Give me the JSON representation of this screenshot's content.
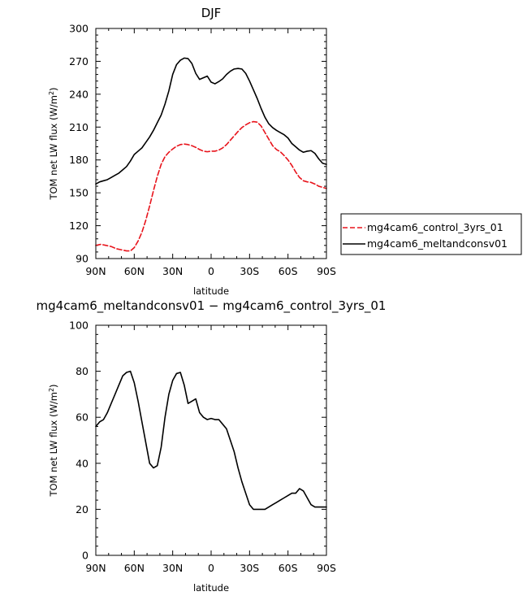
{
  "chart_data": [
    {
      "type": "line",
      "title": "DJF",
      "xlabel": "latitude",
      "ylabel": "TOM net LW flux (W/m²)",
      "ylabel_main": "TOM net LW flux (W/m",
      "ylabel_sup": "2",
      "ylabel_tail": ")",
      "xlim": [
        90,
        -90
      ],
      "ylim": [
        90,
        300
      ],
      "xticks": [
        90,
        60,
        30,
        0,
        -30,
        -60,
        -90
      ],
      "xtick_labels": [
        "90N",
        "60N",
        "30N",
        "0",
        "30S",
        "60S",
        "90S"
      ],
      "yticks": [
        90,
        120,
        150,
        180,
        210,
        240,
        270,
        300
      ],
      "ytick_labels": [
        "90",
        "120",
        "150",
        "180",
        "210",
        "240",
        "270",
        "300"
      ],
      "legend": {
        "placement": "right",
        "entries": [
          "mg4cam6_control_3yrs_01",
          "mg4cam6_meltandconsv01"
        ]
      },
      "series": [
        {
          "name": "mg4cam6_control_3yrs_01",
          "color": "#e8141c",
          "dash": "dashed",
          "x": [
            90,
            86,
            82,
            78,
            74,
            70,
            66,
            63,
            60,
            57,
            54,
            51,
            48,
            45,
            42,
            39,
            36,
            33,
            30,
            27,
            24,
            21,
            18,
            15,
            12,
            9,
            6,
            3,
            0,
            -3,
            -6,
            -9,
            -12,
            -15,
            -18,
            -21,
            -24,
            -27,
            -30,
            -33,
            -36,
            -39,
            -42,
            -45,
            -48,
            -51,
            -54,
            -57,
            -60,
            -63,
            -66,
            -69,
            -72,
            -75,
            -78,
            -81,
            -84,
            -87,
            -90
          ],
          "y": [
            102,
            103,
            102,
            101,
            99,
            98,
            97,
            97,
            100,
            106,
            114,
            125,
            138,
            152,
            165,
            176,
            183,
            187,
            190,
            192.5,
            194,
            194.5,
            194,
            193,
            191.5,
            189.5,
            188,
            187.5,
            188,
            188,
            189,
            191,
            194,
            198,
            202,
            206,
            209.5,
            212,
            214,
            215,
            214.5,
            211,
            205,
            199,
            193,
            189.5,
            187.5,
            184,
            180,
            175,
            169,
            164,
            161,
            160,
            159.5,
            158,
            156,
            155,
            154
          ]
        },
        {
          "name": "mg4cam6_meltandconsv01",
          "color": "#000000",
          "dash": "solid",
          "x": [
            90,
            87,
            84,
            81,
            78,
            75,
            72,
            69,
            66,
            63,
            60,
            57,
            54,
            51,
            48,
            45,
            42,
            39,
            36,
            33,
            30,
            27,
            24,
            21,
            18,
            15,
            12,
            9,
            6,
            3,
            0,
            -3,
            -6,
            -9,
            -12,
            -15,
            -18,
            -21,
            -24,
            -27,
            -30,
            -33,
            -36,
            -39,
            -42,
            -45,
            -48,
            -51,
            -54,
            -57,
            -60,
            -63,
            -66,
            -69,
            -72,
            -75,
            -78,
            -81,
            -84,
            -87,
            -90
          ],
          "y": [
            158,
            160,
            161,
            162,
            164,
            166,
            168,
            171,
            174,
            179,
            185,
            188,
            191,
            196,
            201,
            207,
            214,
            221,
            231,
            243,
            258,
            267,
            271,
            273,
            272.5,
            268,
            259,
            253.5,
            255,
            256.5,
            251,
            249.5,
            251.5,
            254,
            258,
            261,
            263,
            263.5,
            263,
            259,
            252,
            244,
            236,
            227,
            219,
            213,
            209.5,
            207,
            205,
            203,
            200,
            195,
            192,
            189,
            187,
            188,
            188.5,
            186,
            181,
            177,
            176
          ]
        }
      ]
    },
    {
      "type": "line",
      "title": "mg4cam6_meltandconsv01 − mg4cam6_control_3yrs_01",
      "xlabel": "latitude",
      "ylabel": "TOM net LW flux (W/m²)",
      "ylabel_main": "TOM net LW flux (W/m",
      "ylabel_sup": "2",
      "ylabel_tail": ")",
      "xlim": [
        90,
        -90
      ],
      "ylim": [
        0,
        100
      ],
      "xticks": [
        90,
        60,
        30,
        0,
        -30,
        -60,
        -90
      ],
      "xtick_labels": [
        "90N",
        "60N",
        "30N",
        "0",
        "30S",
        "60S",
        "90S"
      ],
      "yticks": [
        0,
        20,
        40,
        60,
        80,
        100
      ],
      "ytick_labels": [
        "0",
        "20",
        "40",
        "60",
        "80",
        "100"
      ],
      "series": [
        {
          "color": "#000000",
          "dash": "solid",
          "x": [
            90,
            87,
            84,
            81,
            78,
            75,
            72,
            69,
            66,
            63,
            60,
            57,
            54,
            51,
            48,
            45,
            42,
            39,
            36,
            33,
            30,
            27,
            24,
            21,
            18,
            15,
            12,
            9,
            6,
            3,
            0,
            -3,
            -6,
            -9,
            -12,
            -15,
            -18,
            -21,
            -24,
            -27,
            -30,
            -33,
            -36,
            -39,
            -42,
            -45,
            -48,
            -51,
            -54,
            -57,
            -60,
            -63,
            -66,
            -69,
            -72,
            -75,
            -78,
            -81,
            -84,
            -87,
            -90
          ],
          "y": [
            56,
            58,
            59,
            62,
            66,
            70,
            74,
            78,
            79.5,
            80,
            75,
            67,
            58,
            49,
            40,
            38,
            39,
            47,
            60,
            70,
            76,
            79,
            79.5,
            74,
            66,
            67,
            68,
            62,
            60,
            59,
            59.5,
            59,
            59,
            57,
            55,
            50,
            45,
            38,
            32,
            27,
            22,
            20,
            20,
            20,
            20,
            21,
            22,
            23,
            24,
            25,
            26,
            27,
            27,
            29,
            28,
            25,
            22,
            21,
            21,
            21,
            21
          ]
        }
      ]
    }
  ]
}
